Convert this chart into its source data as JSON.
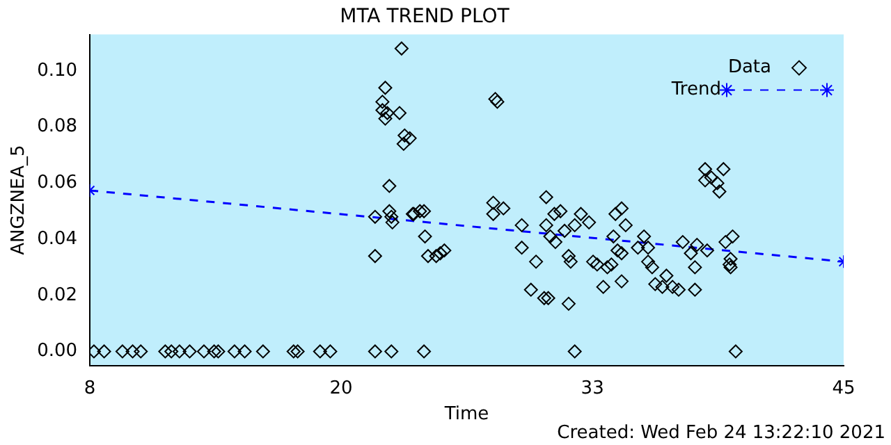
{
  "chart_data": {
    "type": "scatter",
    "title": "MTA TREND PLOT",
    "xlabel": "Time",
    "ylabel": "ANGZNEA_5",
    "annotations": [
      "Created: Wed Feb 24 13:22:10 2021"
    ],
    "xlim": [
      8,
      45
    ],
    "xticks": [
      8,
      {
        "value": 20.33,
        "label": "20"
      },
      {
        "value": 32.67,
        "label": "33"
      },
      45
    ],
    "ylim": [
      -0.005,
      0.113
    ],
    "yticks": [
      {
        "value": 0,
        "label": "0.00"
      },
      {
        "value": 0.02,
        "label": "0.02"
      },
      {
        "value": 0.04,
        "label": "0.04"
      },
      {
        "value": 0.06,
        "label": "0.06"
      },
      {
        "value": 0.08,
        "label": "0.08"
      },
      {
        "value": 0.1,
        "label": "0.10"
      }
    ],
    "grid": false,
    "legend": "top right",
    "series": [
      {
        "name": "Data",
        "marker": "diamond",
        "color": "#000000",
        "x": [
          8.2,
          8.7,
          9.6,
          10.1,
          10.5,
          11.7,
          12.0,
          12.4,
          12.9,
          13.6,
          14.1,
          14.3,
          15.1,
          15.6,
          16.5,
          18.0,
          18.2,
          19.3,
          19.8,
          22.0,
          22.8,
          24.4,
          31.8,
          39.7,
          22.0,
          22.0,
          22.36,
          22.5,
          22.36,
          22.5,
          22.6,
          22.7,
          22.7,
          22.8,
          22.85,
          23.2,
          23.3,
          23.4,
          23.45,
          23.7,
          23.85,
          23.9,
          24.4,
          24.45,
          24.6,
          25.0,
          25.2,
          25.4,
          24.2,
          27.9,
          28.0,
          27.8,
          27.8,
          28.3,
          29.2,
          29.2,
          29.65,
          29.9,
          30.4,
          30.4,
          30.6,
          30.3,
          30.5,
          30.8,
          31.1,
          30.85,
          31.3,
          31.5,
          31.6,
          31.5,
          31.8,
          32.1,
          32.5,
          32.7,
          32.9,
          33.4,
          33.2,
          33.6,
          33.7,
          33.8,
          34.1,
          34.3,
          33.9,
          34.1,
          34.1,
          34.9,
          35.2,
          35.4,
          35.4,
          35.6,
          35.75,
          36.1,
          36.3,
          36.6,
          36.9,
          37.1,
          37.5,
          37.7,
          37.7,
          37.8,
          38.3,
          38.2,
          38.2,
          38.5,
          38.8,
          38.9,
          39.1,
          39.2,
          39.45,
          39.45,
          39.55,
          39.4
        ],
        "values": [
          0,
          0,
          0,
          0,
          0,
          0,
          0,
          0,
          0,
          0,
          0,
          0,
          0,
          0,
          0,
          0,
          0,
          0,
          0,
          0,
          0,
          0,
          0,
          0,
          0.034,
          0.048,
          0.089,
          0.094,
          0.086,
          0.083,
          0.085,
          0.059,
          0.05,
          0.048,
          0.046,
          0.085,
          0.108,
          0.074,
          0.077,
          0.076,
          0.049,
          0.049,
          0.05,
          0.041,
          0.034,
          0.034,
          0.035,
          0.036,
          0.05,
          0.09,
          0.089,
          0.053,
          0.049,
          0.051,
          0.045,
          0.037,
          0.022,
          0.032,
          0.055,
          0.045,
          0.041,
          0.019,
          0.019,
          0.049,
          0.05,
          0.039,
          0.043,
          0.034,
          0.032,
          0.017,
          0.045,
          0.049,
          0.046,
          0.032,
          0.031,
          0.03,
          0.023,
          0.031,
          0.041,
          0.049,
          0.051,
          0.045,
          0.036,
          0.035,
          0.025,
          0.037,
          0.041,
          0.037,
          0.032,
          0.03,
          0.024,
          0.023,
          0.027,
          0.023,
          0.022,
          0.039,
          0.035,
          0.03,
          0.022,
          0.038,
          0.036,
          0.065,
          0.061,
          0.062,
          0.06,
          0.057,
          0.065,
          0.039,
          0.033,
          0.03,
          0.041,
          0.031
        ]
      },
      {
        "name": "Trend",
        "type": "line",
        "marker": "cross",
        "line_style": "dashed",
        "color": "#0000ff",
        "x": [
          8,
          45
        ],
        "values": [
          0.0574,
          0.032
        ]
      }
    ]
  }
}
